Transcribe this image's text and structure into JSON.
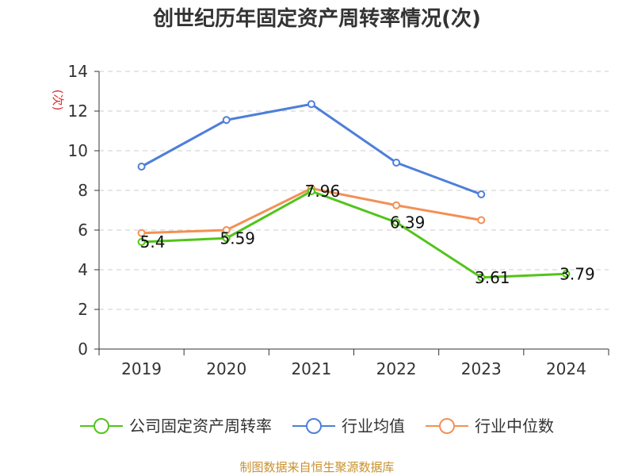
{
  "chart_data": {
    "type": "line",
    "title": "创世纪历年固定资产周转率情况(次)",
    "ylabel": "(次)",
    "xlabel": "",
    "categories": [
      "2019",
      "2020",
      "2021",
      "2022",
      "2023",
      "2024"
    ],
    "ylim": [
      0,
      14
    ],
    "yticks": [
      0,
      2,
      4,
      6,
      8,
      10,
      12,
      14
    ],
    "grid": true,
    "legend_position": "bottom",
    "series": [
      {
        "name": "公司固定资产周转率",
        "color": "#52c41a",
        "values": [
          5.4,
          5.59,
          7.96,
          6.39,
          3.61,
          3.79
        ],
        "labels": [
          "5.4",
          "5.59",
          "7.96",
          "6.39",
          "3.61",
          "3.79"
        ]
      },
      {
        "name": "行业均值",
        "color": "#4e7fd9",
        "values": [
          9.2,
          11.55,
          12.35,
          9.4,
          7.8,
          null
        ],
        "labels": []
      },
      {
        "name": "行业中位数",
        "color": "#f39055",
        "values": [
          5.85,
          6.0,
          8.1,
          7.25,
          6.5,
          null
        ],
        "labels": []
      }
    ],
    "source": "制图数据来自恒生聚源数据库"
  }
}
